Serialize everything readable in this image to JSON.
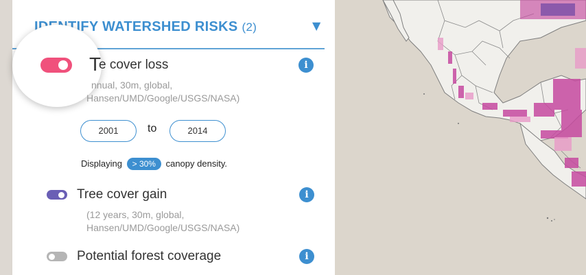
{
  "header": {
    "title": "IDENTIFY WATERSHED RISKS",
    "count": "(2)",
    "chevron": "▼"
  },
  "layers": [
    {
      "name": "Tree cover loss",
      "visible_name_start": "T",
      "visible_name_rest": "e cover loss",
      "desc_line1": "nnual, 30m, global,",
      "desc_line2": "Hansen/UMD/Google/USGS/NASA)",
      "toggle_on": true,
      "toggle_color": "#f0517c"
    },
    {
      "name": "Tree cover gain",
      "desc_line1": "(12 years, 30m, global,",
      "desc_line2": "Hansen/UMD/Google/USGS/NASA)",
      "toggle_on": true,
      "toggle_color": "#6a5fb5"
    },
    {
      "name": "Potential forest coverage",
      "toggle_on": false,
      "toggle_color": "#b5b5b5"
    }
  ],
  "date_range": {
    "from": "2001",
    "to_label": "to",
    "to": "2014"
  },
  "density": {
    "prefix": "Displaying",
    "value": "> 30%",
    "suffix": "canopy density."
  },
  "info_icon_glyph": "i",
  "colors": {
    "accent": "#3d8fd0",
    "loss": "#f0517c",
    "gain": "#6a5fb5",
    "map_pixels": "#c64aa0"
  }
}
